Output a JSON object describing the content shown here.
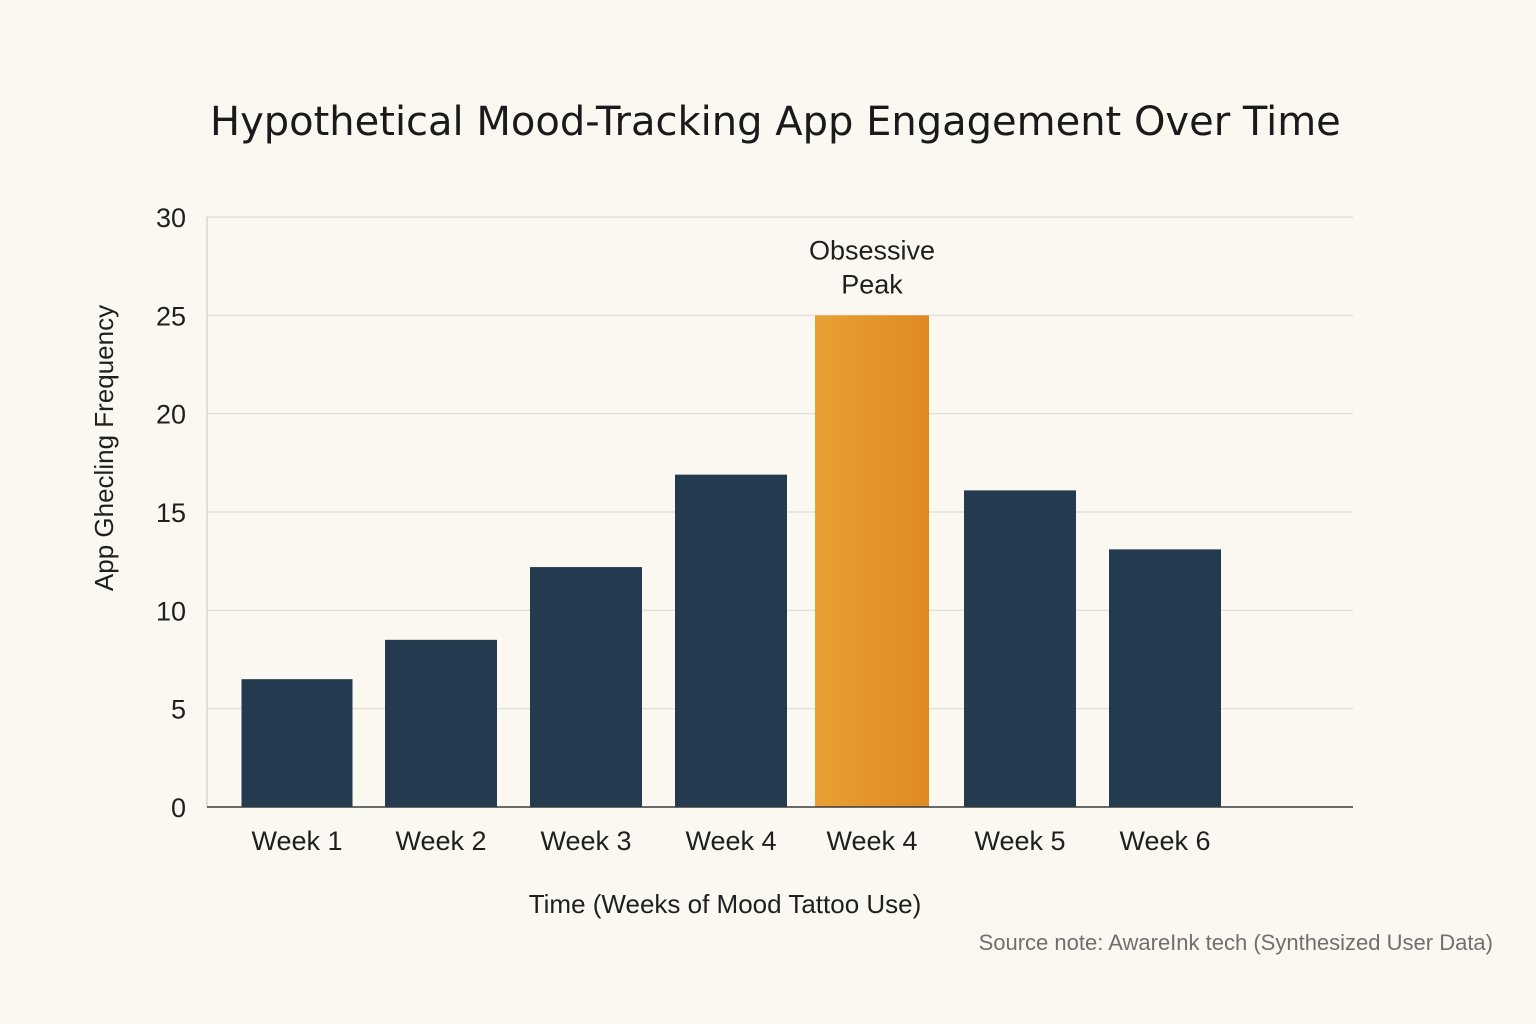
{
  "chart_data": {
    "type": "bar",
    "title": "Hypothetical Mood-Tracking App Engagement Over Time",
    "xlabel": "Time (Weeks of Mood Tattoo Use)",
    "ylabel": "App Ghecling Frequency",
    "ylim": [
      0,
      30
    ],
    "yticks": [
      0,
      5,
      10,
      15,
      20,
      25,
      30
    ],
    "grid": true,
    "categories": [
      "Week 1",
      "Week 2",
      "Week 3",
      "Week 4",
      "Week 4",
      "Week 5",
      "Week 6"
    ],
    "values": [
      6.5,
      8.5,
      12.2,
      16.9,
      25,
      16.1,
      13.1
    ],
    "highlight_index": 4,
    "colors": {
      "bar": "#243a4f",
      "highlight_top": "#e8a034",
      "highlight_bottom": "#de8a25"
    },
    "annotation": {
      "index": 4,
      "lines": [
        "Obsessive",
        "Peak"
      ]
    },
    "source_note": "Source note: AwareInk tech (Synthesized User Data)"
  }
}
